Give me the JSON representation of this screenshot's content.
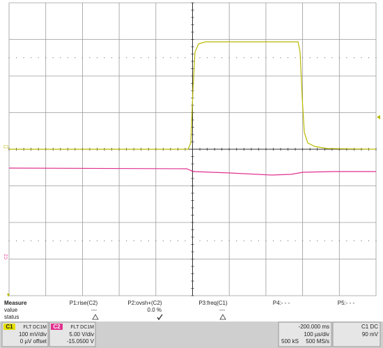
{
  "measure": {
    "header": "Measure",
    "value_label": "value",
    "status_label": "status",
    "params": [
      "P1:rise(C2)",
      "P2:ovsh+(C2)",
      "P3:freq(C1)",
      "P4:- - -",
      "P5:- - -"
    ],
    "values": [
      "---",
      "0.0 %",
      "---"
    ]
  },
  "channels": [
    {
      "name": "C1",
      "coupling": "FLT DC1M",
      "scale": "100 mV/div",
      "offset": "0 µV offset"
    },
    {
      "name": "C2",
      "coupling": "FLT DC1M",
      "scale": "5.00 V/div",
      "offset": "-15.0500 V"
    }
  ],
  "timebase": {
    "delay": "-200.000 ms",
    "scale": "100 µs/div",
    "samples": "500 kS",
    "rate": "500 MS/s"
  },
  "trigger": {
    "label": "C1 DC",
    "level": "90 mV"
  },
  "markers": {
    "c1": "C1",
    "c2": "C2"
  }
}
